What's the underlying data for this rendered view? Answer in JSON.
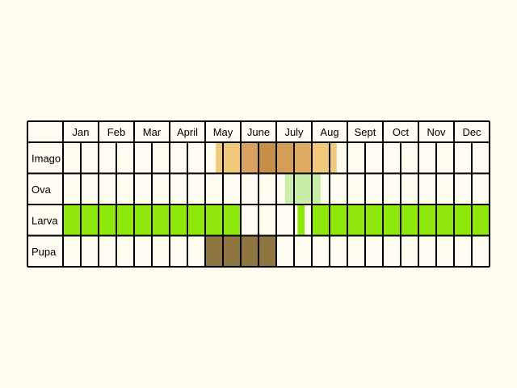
{
  "chart_data": {
    "type": "table",
    "months": [
      "Jan",
      "Feb",
      "Mar",
      "April",
      "May",
      "June",
      "July",
      "Aug",
      "Sept",
      "Oct",
      "Nov",
      "Dec"
    ],
    "stages": [
      {
        "label": "Imago",
        "bands": [
          {
            "from_month": 5.3,
            "to_month": 6.0,
            "color": "#f2c97a"
          },
          {
            "from_month": 6.0,
            "to_month": 6.5,
            "color": "#d9a060"
          },
          {
            "from_month": 6.5,
            "to_month": 7.0,
            "color": "#c78e48"
          },
          {
            "from_month": 7.0,
            "to_month": 7.5,
            "color": "#d39d58"
          },
          {
            "from_month": 7.5,
            "to_month": 8.0,
            "color": "#dfaa62"
          },
          {
            "from_month": 8.0,
            "to_month": 8.7,
            "color": "#f2c97a"
          }
        ]
      },
      {
        "label": "Ova",
        "bands": [
          {
            "from_month": 7.25,
            "to_month": 8.25,
            "color": "#c8eeaa"
          }
        ]
      },
      {
        "label": "Larva",
        "bands": [
          {
            "from_month": 1.0,
            "to_month": 6.0,
            "color": "#8fe80c"
          },
          {
            "from_month": 7.6,
            "to_month": 7.8,
            "color": "#8fe80c"
          },
          {
            "from_month": 8.0,
            "to_month": 13.0,
            "color": "#8fe80c"
          }
        ]
      },
      {
        "label": "Pupa",
        "bands": [
          {
            "from_month": 5.0,
            "to_month": 7.0,
            "color": "#8f7540"
          }
        ]
      }
    ],
    "subdivisions_per_month": 2,
    "grid": true
  },
  "colors": {
    "background": "#fefcee",
    "cell": "#fefcee",
    "grid_line": "#000000"
  }
}
